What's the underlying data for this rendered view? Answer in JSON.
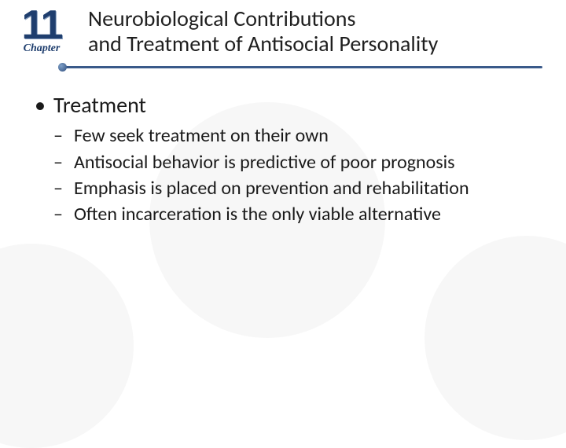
{
  "chapter": {
    "number": "11",
    "label": "Chapter"
  },
  "title": {
    "line1": "Neurobiological Contributions",
    "line2": "and Treatment of Antisocial Personality"
  },
  "bullets": {
    "level1_0": "Treatment",
    "level2": {
      "0": "Few seek treatment on their own",
      "1": "Antisocial behavior is predictive of poor prognosis",
      "2": "Emphasis is placed on prevention and rehabilitation",
      "3": "Often incarceration is the only viable alternative"
    }
  },
  "style": {
    "accent_color": "#1f3e6e",
    "divider_color": "#3a5a8a",
    "text_color": "#1a1a1a",
    "watermark_color": "#f7f7f7",
    "title_fontsize": 28,
    "l1_fontsize": 28,
    "l2_fontsize": 24
  }
}
